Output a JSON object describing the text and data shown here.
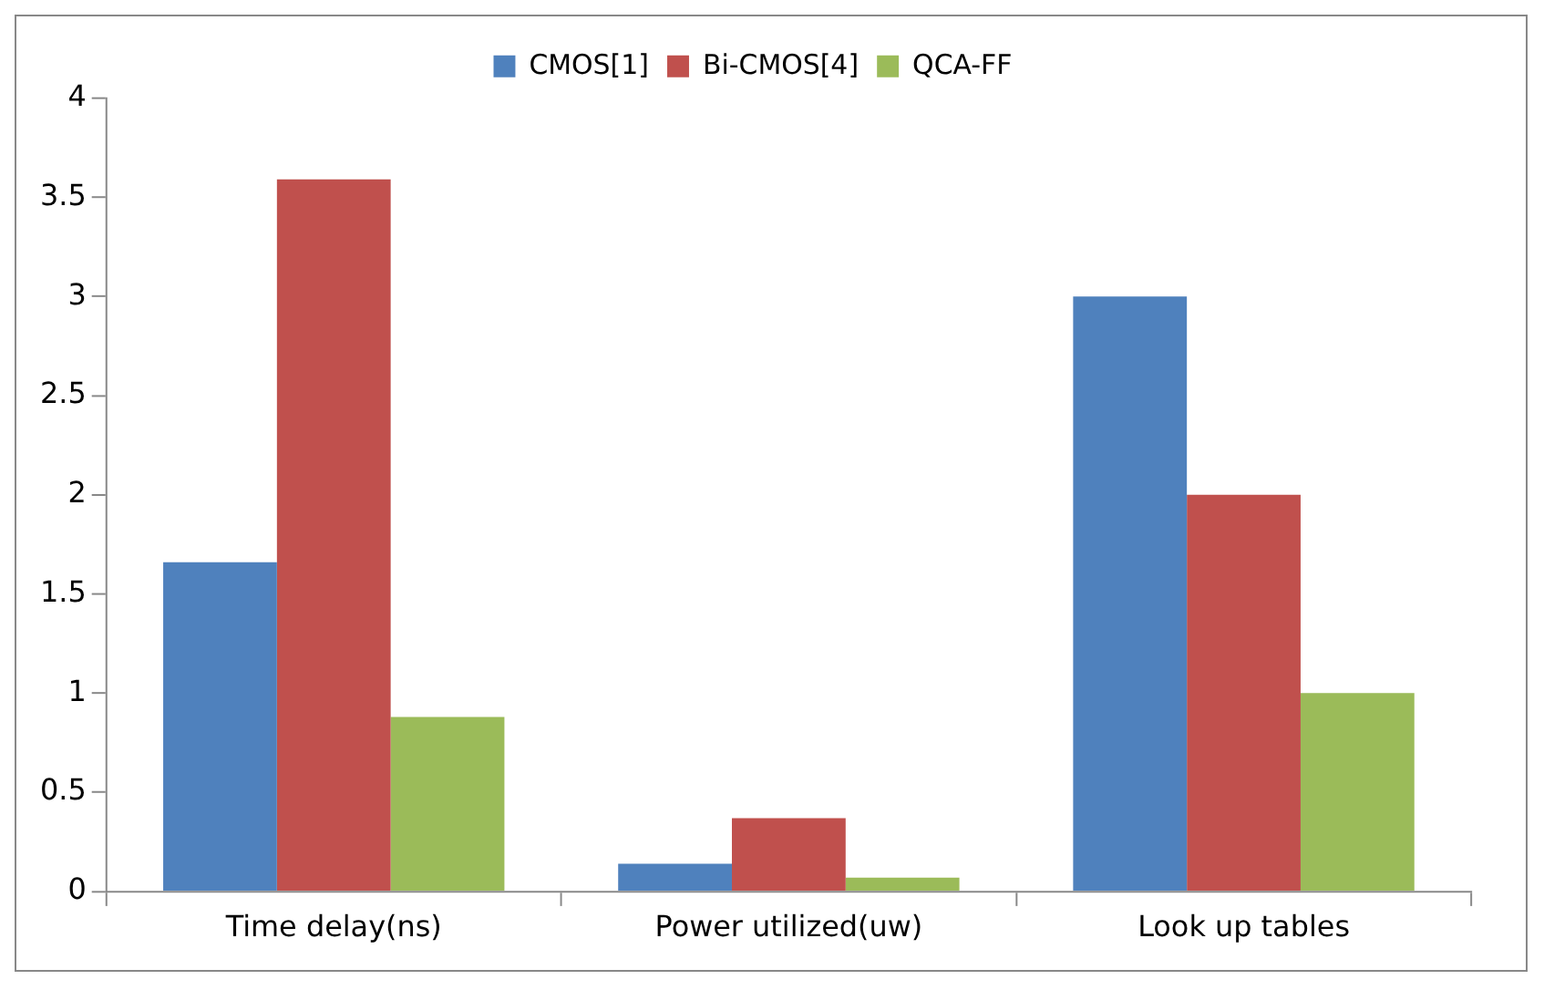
{
  "chart_data": {
    "type": "bar",
    "categories": [
      "Time delay(ns)",
      "Power utilized(uw)",
      "Look up tables"
    ],
    "series": [
      {
        "name": "CMOS[1]",
        "color": "#4f81bd",
        "values": [
          1.66,
          0.14,
          3
        ]
      },
      {
        "name": "Bi-CMOS[4]",
        "color": "#c0504d",
        "values": [
          3.59,
          0.37,
          2
        ]
      },
      {
        "name": "QCA-FF",
        "color": "#9bbb59",
        "values": [
          0.88,
          0.07,
          1
        ]
      }
    ],
    "ylim": [
      0,
      4
    ],
    "yticks": [
      0,
      0.5,
      1,
      1.5,
      2,
      2.5,
      3,
      3.5,
      4
    ],
    "grid": false,
    "legend": "top"
  }
}
